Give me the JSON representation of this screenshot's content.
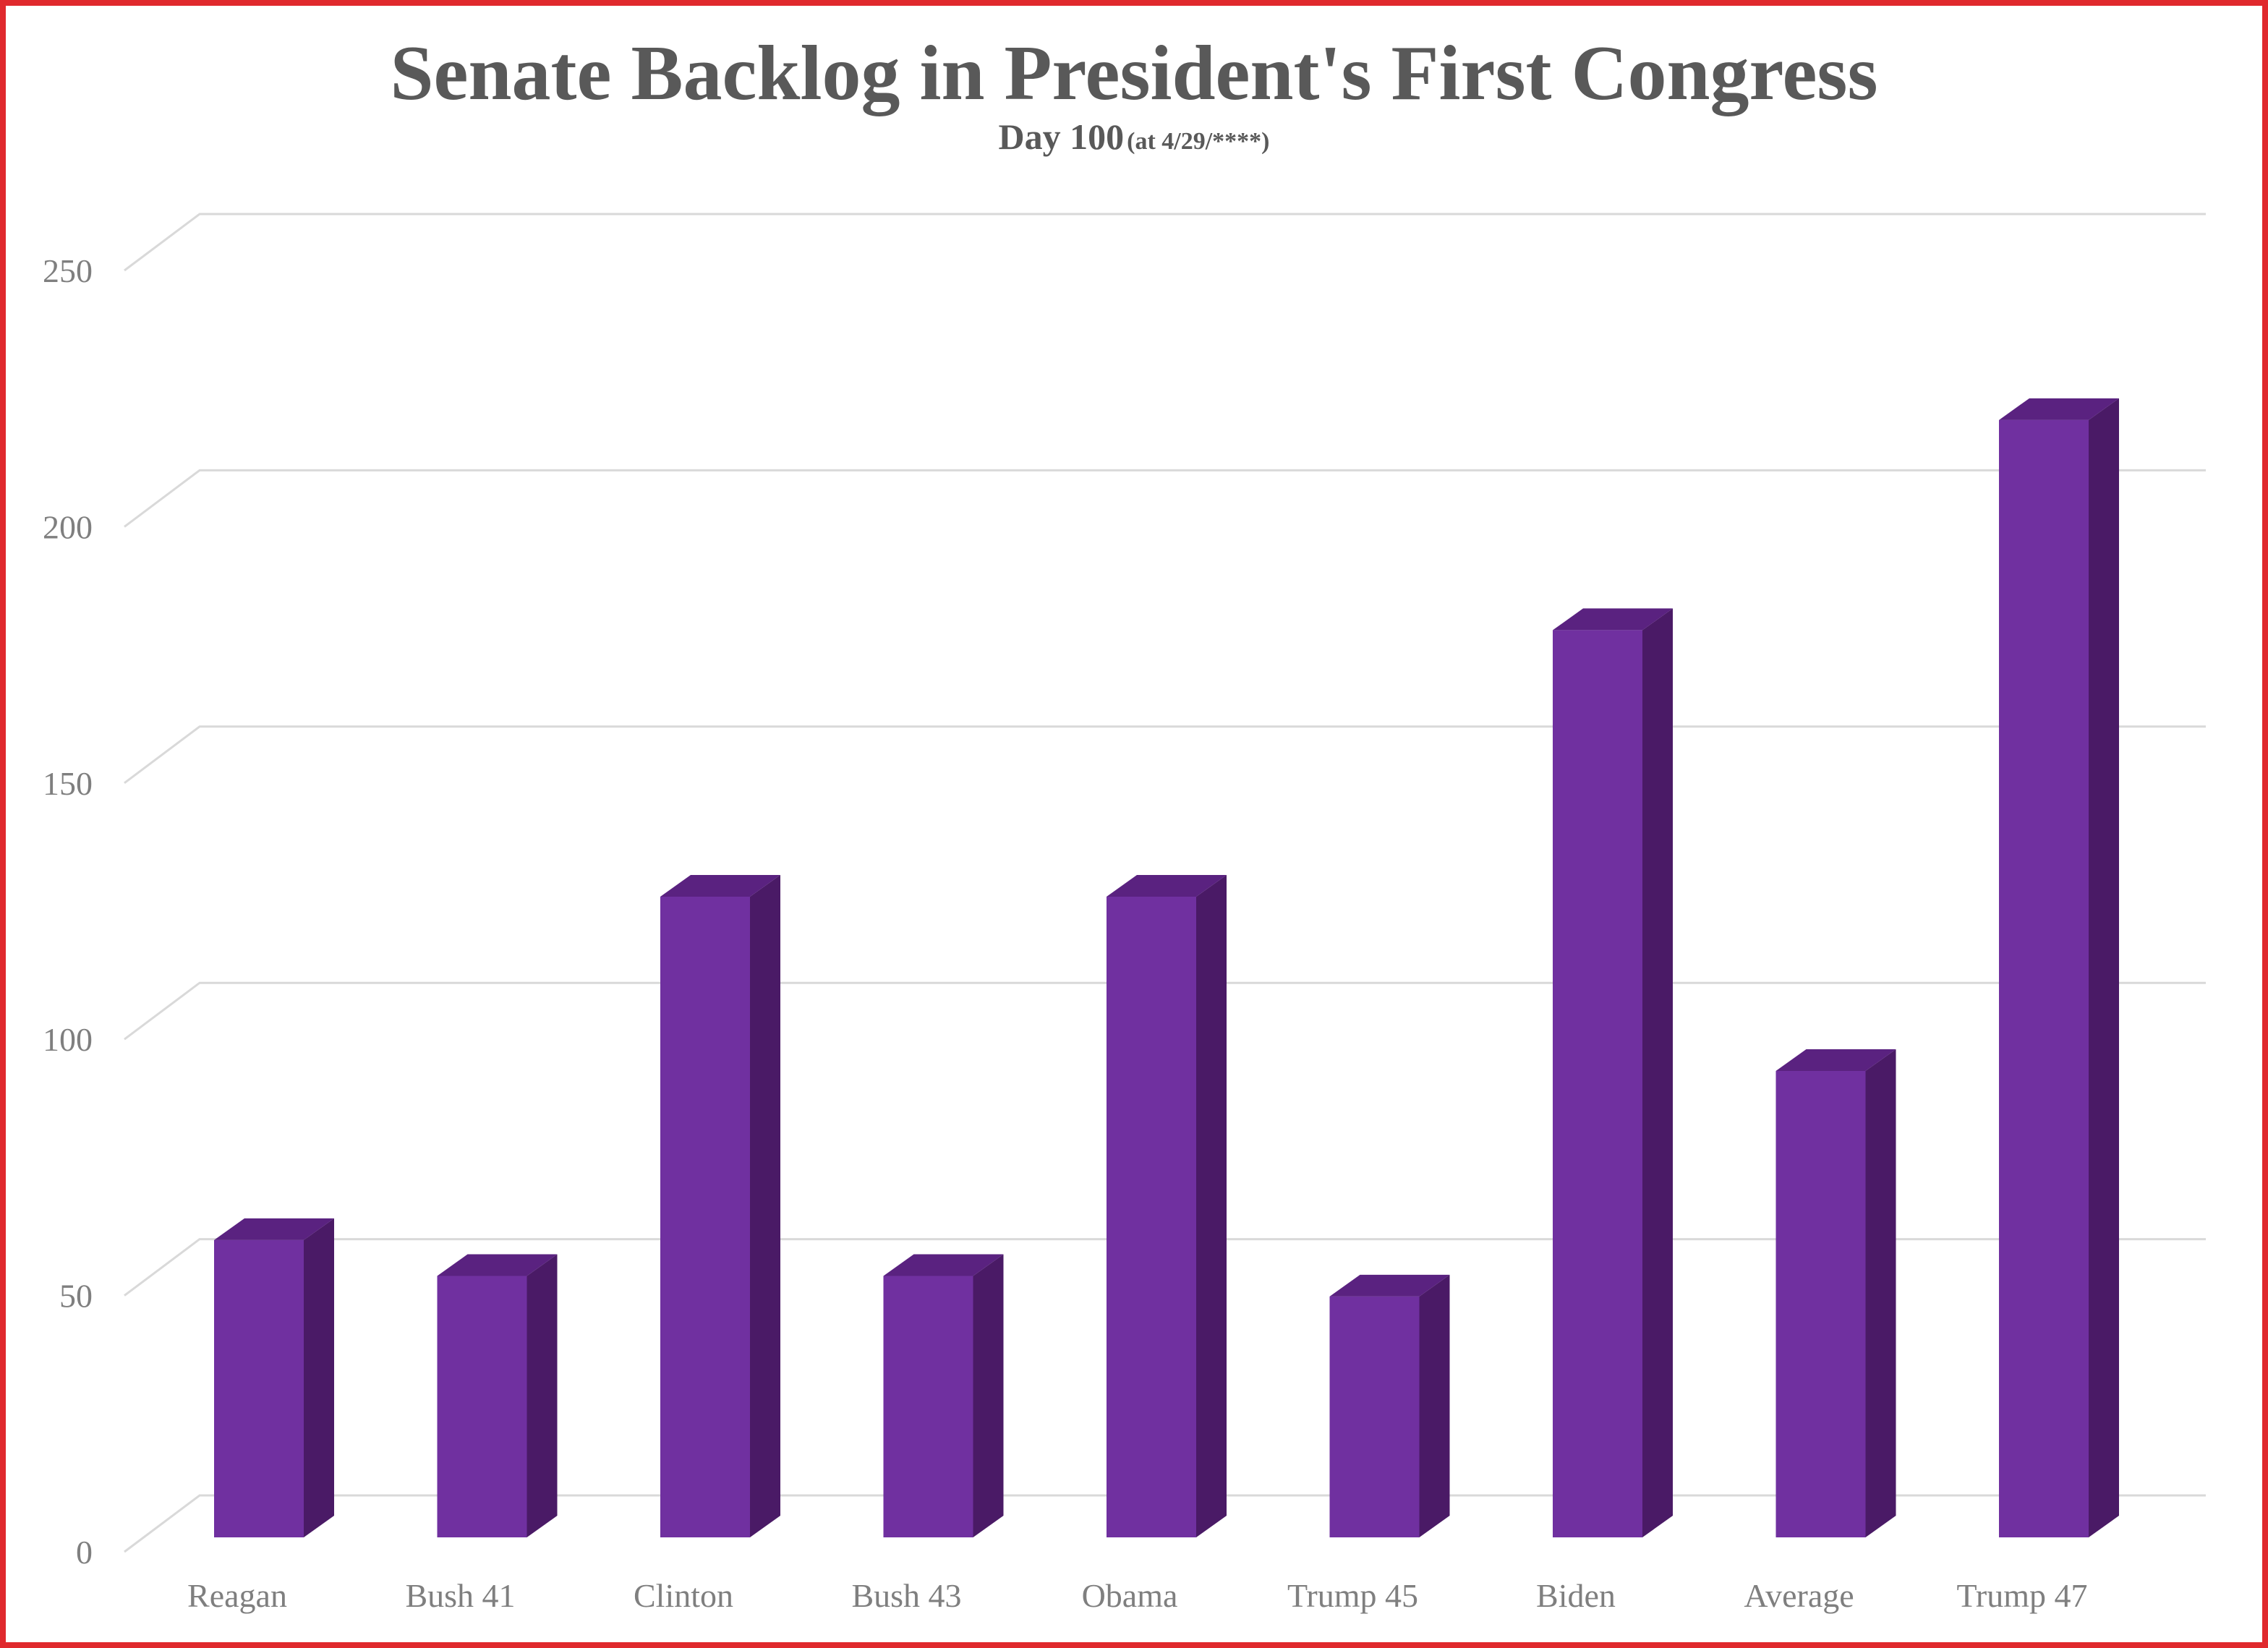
{
  "chart_data": {
    "type": "bar",
    "style": "3d-column",
    "title": "Senate Backlog in President's First Congress",
    "subtitle": {
      "main": "Day 100",
      "note": "(at 4/29/****)"
    },
    "xlabel": "",
    "ylabel": "",
    "categories": [
      "Reagan",
      "Bush 41",
      "Clinton",
      "Bush 43",
      "Obama",
      "Trump 45",
      "Biden",
      "Average",
      "Trump 47"
    ],
    "series": [
      {
        "values": [
          58,
          51,
          125,
          51,
          125,
          47,
          177,
          91,
          218
        ]
      }
    ],
    "ylim": [
      0,
      250
    ],
    "yticks": [
      0,
      50,
      100,
      150,
      200,
      250
    ],
    "grid": true,
    "legend": "none",
    "colors": {
      "bar_front": "#7030a0",
      "bar_side": "#4a1a66",
      "bar_top": "#5a2280",
      "grid": "#d9d9d9",
      "text": "#595959",
      "border": "#e0292d"
    }
  }
}
